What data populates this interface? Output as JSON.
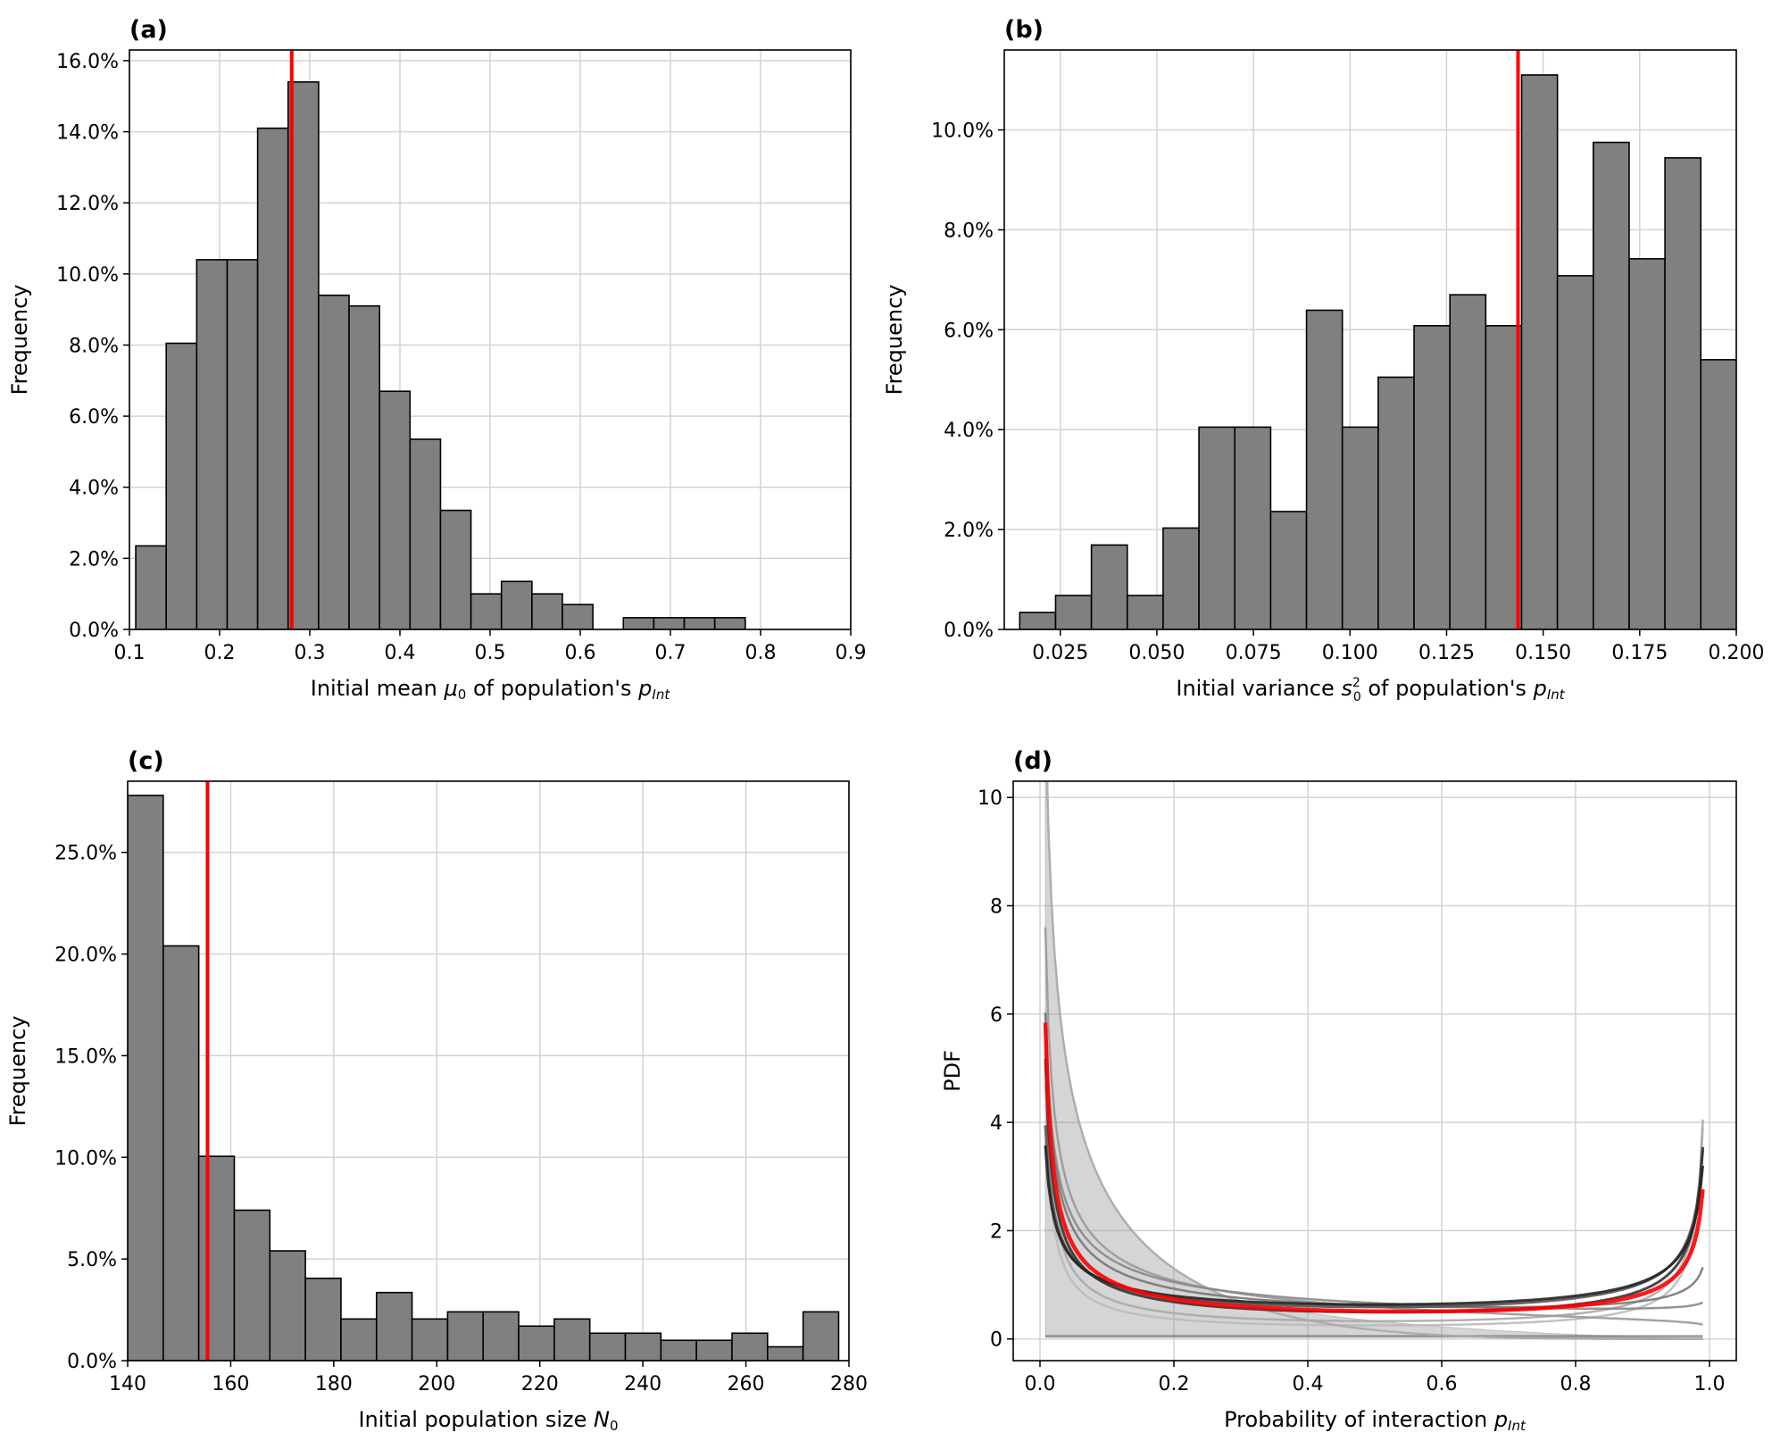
{
  "chart_data": [
    {
      "id": "a",
      "type": "bar",
      "title": "(a)",
      "xlabel_parts": [
        "Initial mean ",
        "μ",
        "0",
        " of population's ",
        "p",
        "Int"
      ],
      "ylabel": "Frequency",
      "xlim": [
        0.1,
        0.9
      ],
      "ylim": [
        0,
        16.3
      ],
      "xticks": [
        0.1,
        0.2,
        0.3,
        0.4,
        0.5,
        0.6,
        0.7,
        0.8,
        0.9
      ],
      "xtick_labels": [
        "0.1",
        "0.2",
        "0.3",
        "0.4",
        "0.5",
        "0.6",
        "0.7",
        "0.8",
        "0.9"
      ],
      "yticks": [
        0,
        2,
        4,
        6,
        8,
        10,
        12,
        14,
        16
      ],
      "ytick_labels": [
        "0.0%",
        "2.0%",
        "4.0%",
        "6.0%",
        "8.0%",
        "10.0%",
        "12.0%",
        "14.0%",
        "16.0%"
      ],
      "bin_start": 0.107,
      "bin_width": 0.0338,
      "values": [
        2.35,
        8.05,
        10.4,
        10.4,
        14.1,
        15.4,
        9.4,
        9.1,
        6.7,
        5.35,
        3.35,
        1.0,
        1.35,
        1.0,
        0.7,
        0,
        0.33,
        0.33,
        0.33,
        0.33
      ],
      "vline": 0.28,
      "grid": true
    },
    {
      "id": "b",
      "type": "bar",
      "title": "(b)",
      "xlabel_parts": [
        "Initial variance ",
        "s",
        "2",
        "0",
        " of population's ",
        "p",
        "Int"
      ],
      "ylabel": "Frequency",
      "xlim": [
        0.0105,
        0.2
      ],
      "ylim": [
        0,
        11.6
      ],
      "xticks": [
        0.025,
        0.05,
        0.075,
        0.1,
        0.125,
        0.15,
        0.175,
        0.2
      ],
      "xtick_labels": [
        "0.025",
        "0.050",
        "0.075",
        "0.100",
        "0.125",
        "0.150",
        "0.175",
        "0.200"
      ],
      "yticks": [
        0,
        2,
        4,
        6,
        8,
        10
      ],
      "ytick_labels": [
        "0.0%",
        "2.0%",
        "4.0%",
        "6.0%",
        "8.0%",
        "10.0%"
      ],
      "bin_start": 0.0145,
      "bin_width": 0.00928,
      "values": [
        0.34,
        0.68,
        1.69,
        0.68,
        2.03,
        4.05,
        4.05,
        2.36,
        6.39,
        4.05,
        5.05,
        6.08,
        6.7,
        6.08,
        11.1,
        7.08,
        9.75,
        7.42,
        9.44,
        5.4
      ],
      "vline": 0.1435,
      "grid": true
    },
    {
      "id": "c",
      "type": "bar",
      "title": "(c)",
      "xlabel_parts": [
        "Initial population size ",
        "N",
        "0"
      ],
      "ylabel": "Frequency",
      "xlim": [
        140,
        280
      ],
      "ylim": [
        0,
        28.5
      ],
      "xticks": [
        140,
        160,
        180,
        200,
        220,
        240,
        260,
        280
      ],
      "xtick_labels": [
        "140",
        "160",
        "180",
        "200",
        "220",
        "240",
        "260",
        "280"
      ],
      "yticks": [
        0,
        5,
        10,
        15,
        20,
        25
      ],
      "ytick_labels": [
        "0.0%",
        "5.0%",
        "10.0%",
        "15.0%",
        "20.0%",
        "25.0%"
      ],
      "bin_start": 140,
      "bin_width": 6.9,
      "values": [
        27.8,
        20.4,
        10.05,
        7.4,
        5.4,
        4.05,
        2.05,
        3.35,
        2.05,
        2.4,
        2.4,
        1.7,
        2.05,
        1.35,
        1.35,
        1.0,
        1.0,
        1.35,
        0.68,
        2.4
      ],
      "vline": 155.5,
      "grid": true
    },
    {
      "id": "d",
      "type": "line",
      "title": "(d)",
      "xlabel_parts": [
        "Probability of interaction ",
        "p",
        "Int"
      ],
      "ylabel": "PDF",
      "xlim": [
        -0.04,
        1.04
      ],
      "ylim": [
        -0.4,
        10.3
      ],
      "xticks": [
        0,
        0.2,
        0.4,
        0.6,
        0.8,
        1.0
      ],
      "xtick_labels": [
        "0.0",
        "0.2",
        "0.4",
        "0.6",
        "0.8",
        "1.0"
      ],
      "yticks": [
        0,
        2,
        4,
        6,
        8,
        10
      ],
      "ytick_labels": [
        "0",
        "2",
        "4",
        "6",
        "8",
        "10"
      ],
      "grid": true,
      "bands": [
        {
          "a": [
            0.35,
            0.55
          ],
          "b": [
            2.2,
            4.5
          ],
          "color": "#888888",
          "opacity": 0.35
        }
      ],
      "series": [
        {
          "a": 0.15,
          "b": 0.15,
          "color": "#bbbbbb",
          "width": 2.5
        },
        {
          "a": 0.2,
          "b": 0.22,
          "color": "#aaaaaa",
          "width": 2.5
        },
        {
          "a": 0.55,
          "b": 4.5,
          "color": "#aaaaaa",
          "width": 2.5
        },
        {
          "a": 0.4,
          "b": 1.1,
          "color": "#999999",
          "width": 2.5
        },
        {
          "a": 0.45,
          "b": 0.9,
          "color": "#888888",
          "width": 2.5
        },
        {
          "a": 0.4,
          "b": 0.7,
          "color": "#777777",
          "width": 2.5
        },
        {
          "a": 0.45,
          "b": 0.45,
          "color": "#555555",
          "width": 3
        },
        {
          "a": 0.33,
          "b": 0.38,
          "color": "#333333",
          "width": 3
        },
        {
          "a": 0.5,
          "b": 0.5,
          "color": "#222222",
          "width": 3
        },
        {
          "a": 0.32,
          "b": 0.45,
          "color": "#ff0000",
          "width": 4.5
        }
      ]
    }
  ],
  "colors": {
    "bar": "#808080",
    "vline": "#ff0000",
    "grid": "#d3d3d3"
  }
}
